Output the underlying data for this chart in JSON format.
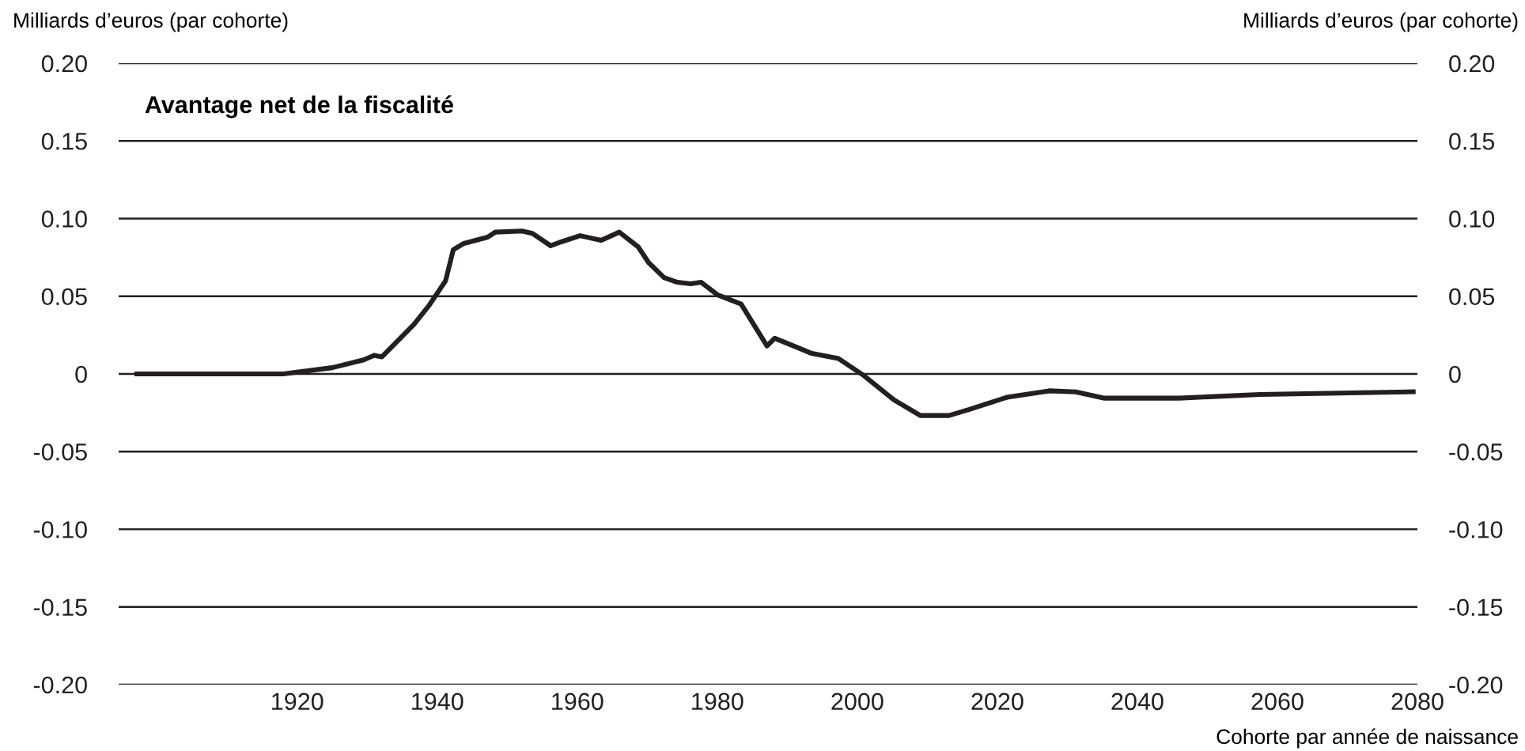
{
  "chart_data": {
    "type": "line",
    "title": "Avantage net de la fiscalité",
    "ylabel": "Milliards d’euros (par cohorte)",
    "y2label": "Milliards d’euros (par cohorte)",
    "xlabel": "Cohorte par année de naissance",
    "x": [
      1897.1,
      1918,
      1925,
      1929.5,
      1931,
      1932.1,
      1936.7,
      1938.9,
      1941.2,
      1942.3,
      1943.8,
      1947.2,
      1948.3,
      1952.1,
      1953.6,
      1956.2,
      1957.7,
      1960.4,
      1963.4,
      1966,
      1968.7,
      1970.2,
      1972.4,
      1974.3,
      1976.2,
      1977.7,
      1980,
      1983.4,
      1987.1,
      1988.2,
      1993.5,
      1997.3,
      2001,
      2005.2,
      2009,
      2013.1,
      2016.1,
      2021.4,
      2027.4,
      2031.2,
      2035.3,
      2046,
      2057.5,
      2079.4
    ],
    "series": [
      {
        "color": "#231f20",
        "values": [
          0,
          0,
          0.004,
          0.009,
          0.012,
          0.011,
          0.032,
          0.0445,
          0.06,
          0.08,
          0.084,
          0.088,
          0.0913,
          0.092,
          0.0905,
          0.0825,
          0.085,
          0.089,
          0.086,
          0.0913,
          0.0818,
          0.0716,
          0.062,
          0.059,
          0.058,
          0.059,
          0.051,
          0.045,
          0.018,
          0.023,
          0.0132,
          0.0099,
          -0.0013,
          -0.0166,
          -0.0268,
          -0.0268,
          -0.0227,
          -0.015,
          -0.0109,
          -0.0116,
          -0.0156,
          -0.0156,
          -0.0132,
          -0.0115
        ]
      }
    ],
    "xlim": [
      1894.5,
      2080
    ],
    "xticks": [
      1920,
      1940,
      1960,
      1980,
      2000,
      2020,
      2040,
      2060,
      2080
    ],
    "ylim": [
      -0.2,
      0.2
    ],
    "yticks": [
      {
        "value": -0.2,
        "label": "-0.20"
      },
      -0.15,
      {
        "value": -0.1,
        "label": "-0.10"
      },
      -0.05,
      0,
      0.05,
      {
        "value": 0.1,
        "label": "0.10"
      },
      0.15,
      {
        "value": 0.2,
        "label": "0.20"
      }
    ],
    "y2lim": [
      -0.2,
      0.2
    ],
    "y2ticks": [
      {
        "value": -0.2,
        "label": "-0.20"
      },
      -0.15,
      {
        "value": -0.1,
        "label": "-0.10"
      },
      -0.05,
      0,
      0.05,
      {
        "value": 0.1,
        "label": "0.10"
      },
      0.15,
      {
        "value": 0.2,
        "label": "0.20"
      }
    ],
    "grid": "y",
    "legend": false,
    "marker": "none",
    "line_style": "solid"
  }
}
